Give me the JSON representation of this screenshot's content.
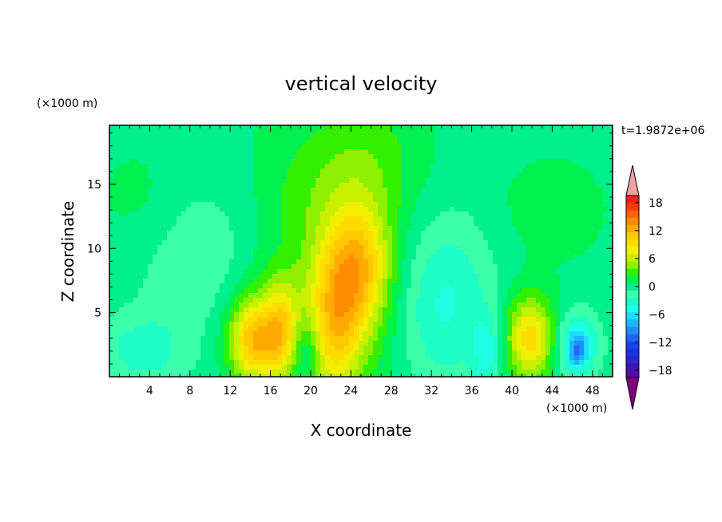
{
  "chart_data": {
    "type": "heatmap",
    "title": "vertical velocity",
    "xlabel": "X coordinate",
    "ylabel": "Z coordinate",
    "x_unit": "(×1000 m)",
    "y_unit": "(×1000 m)",
    "time_label": "t=1.9872e+06",
    "xlim": [
      0,
      50
    ],
    "ylim": [
      0,
      19.6
    ],
    "x_ticks": [
      4,
      8,
      12,
      16,
      20,
      24,
      28,
      32,
      36,
      40,
      44,
      48
    ],
    "y_ticks": [
      5,
      10,
      15
    ],
    "colorbar": {
      "range": [
        -21,
        21
      ],
      "step": 1.5,
      "tick_values": [
        18,
        12,
        6,
        0,
        -6,
        -12,
        -18
      ],
      "tick_labels": [
        "18",
        "12",
        "6",
        "0",
        "−6",
        "−12",
        "−18"
      ],
      "colors": [
        "#800080",
        "#5a0aa0",
        "#3c14b4",
        "#2828c8",
        "#1e32dc",
        "#1446f0",
        "#1e64ff",
        "#1e8cff",
        "#1eb4ff",
        "#1edcff",
        "#1effe6",
        "#1effc8",
        "#3cffaa",
        "#00f08c",
        "#00f050",
        "#32f000",
        "#8cf000",
        "#c8f000",
        "#f0f000",
        "#ffdc00",
        "#ffc800",
        "#ffaa00",
        "#ff8c00",
        "#ff6400",
        "#ff3c00",
        "#ff1e1e",
        "#f0a0a0"
      ]
    },
    "background_value": -0.5,
    "features": [
      {
        "x": 14.2,
        "z": 2.8,
        "sx": 1.6,
        "sz": 2.2,
        "w": 9.0
      },
      {
        "x": 17.0,
        "z": 3.5,
        "sx": 1.2,
        "sz": 2.5,
        "w": 7.0
      },
      {
        "x": 22.5,
        "z": 4.5,
        "sx": 1.8,
        "sz": 4.5,
        "w": 7.5
      },
      {
        "x": 25.0,
        "z": 8.5,
        "sx": 2.0,
        "sz": 3.5,
        "w": 7.5
      },
      {
        "x": 24.0,
        "z": 10.0,
        "sx": 6.0,
        "sz": 8.0,
        "w": 3.0
      },
      {
        "x": 41.8,
        "z": 3.0,
        "sx": 1.7,
        "sz": 2.3,
        "w": 9.0
      },
      {
        "x": 14.5,
        "z": 4.5,
        "sx": 5.0,
        "sz": 4.0,
        "w": 3.0
      },
      {
        "x": 33.0,
        "z": 6.0,
        "sx": 3.5,
        "sz": 5.0,
        "w": -5.0
      },
      {
        "x": 10.0,
        "z": 7.0,
        "sx": 4.5,
        "sz": 5.0,
        "w": -3.5
      },
      {
        "x": 46.5,
        "z": 2.5,
        "sx": 1.5,
        "sz": 1.8,
        "w": -6.0
      },
      {
        "x": 46.5,
        "z": 2.0,
        "sx": 0.6,
        "sz": 0.9,
        "w": -5.0
      },
      {
        "x": 37.5,
        "z": 2.0,
        "sx": 1.0,
        "sz": 2.0,
        "w": -4.0
      },
      {
        "x": 3.0,
        "z": 2.0,
        "sx": 3.0,
        "sz": 2.0,
        "w": -3.0
      },
      {
        "x": 19.5,
        "z": 2.0,
        "sx": 1.0,
        "sz": 2.0,
        "w": -3.5
      },
      {
        "x": 26.0,
        "z": 17.5,
        "sx": 3.0,
        "sz": 3.0,
        "w": 1.2
      },
      {
        "x": 20.0,
        "z": 15.0,
        "sx": 4.0,
        "sz": 3.0,
        "w": 1.0
      },
      {
        "x": 44.0,
        "z": 13.0,
        "sx": 4.0,
        "sz": 3.0,
        "w": 1.2
      },
      {
        "x": 3.0,
        "z": 14.0,
        "sx": 3.0,
        "sz": 3.0,
        "w": 1.0
      }
    ]
  }
}
